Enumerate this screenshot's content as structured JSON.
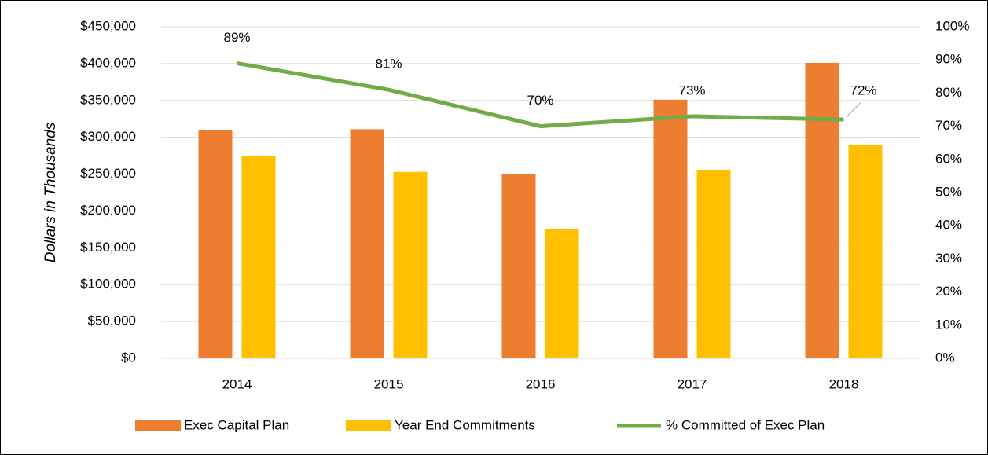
{
  "chart_data": {
    "type": "bar",
    "categories": [
      "2014",
      "2015",
      "2016",
      "2017",
      "2018"
    ],
    "series": [
      {
        "name": "Exec Capital Plan",
        "color": "#ed7d31",
        "values": [
          310000,
          311000,
          250000,
          351000,
          401000
        ]
      },
      {
        "name": "Year End Commitments",
        "color": "#ffc000",
        "values": [
          275000,
          253000,
          175000,
          256000,
          289000
        ]
      },
      {
        "name": "% Committed of Exec Plan",
        "color": "#70ad47",
        "type": "line",
        "axis": "y2",
        "values": [
          89,
          81,
          70,
          73,
          72
        ],
        "value_labels": [
          "89%",
          "81%",
          "70%",
          "73%",
          "72%"
        ]
      }
    ],
    "ylabel": "Dollars in Thousands",
    "ylim": [
      0,
      450000
    ],
    "yticks": [
      {
        "value": 0,
        "label": "$0"
      },
      {
        "value": 50000,
        "label": "$50,000"
      },
      {
        "value": 100000,
        "label": "$100,000"
      },
      {
        "value": 150000,
        "label": "$150,000"
      },
      {
        "value": 200000,
        "label": "$200,000"
      },
      {
        "value": 250000,
        "label": "$250,000"
      },
      {
        "value": 300000,
        "label": "$300,000"
      },
      {
        "value": 350000,
        "label": "$350,000"
      },
      {
        "value": 400000,
        "label": "$400,000"
      },
      {
        "value": 450000,
        "label": "$450,000"
      }
    ],
    "y2lim": [
      0,
      100
    ],
    "y2ticks": [
      {
        "value": 0,
        "label": "0%"
      },
      {
        "value": 10,
        "label": "10%"
      },
      {
        "value": 20,
        "label": "20%"
      },
      {
        "value": 30,
        "label": "30%"
      },
      {
        "value": 40,
        "label": "40%"
      },
      {
        "value": 50,
        "label": "50%"
      },
      {
        "value": 60,
        "label": "60%"
      },
      {
        "value": 70,
        "label": "70%"
      },
      {
        "value": 80,
        "label": "80%"
      },
      {
        "value": 90,
        "label": "90%"
      },
      {
        "value": 100,
        "label": "100%"
      }
    ],
    "grid": true,
    "legend": "bottom"
  }
}
